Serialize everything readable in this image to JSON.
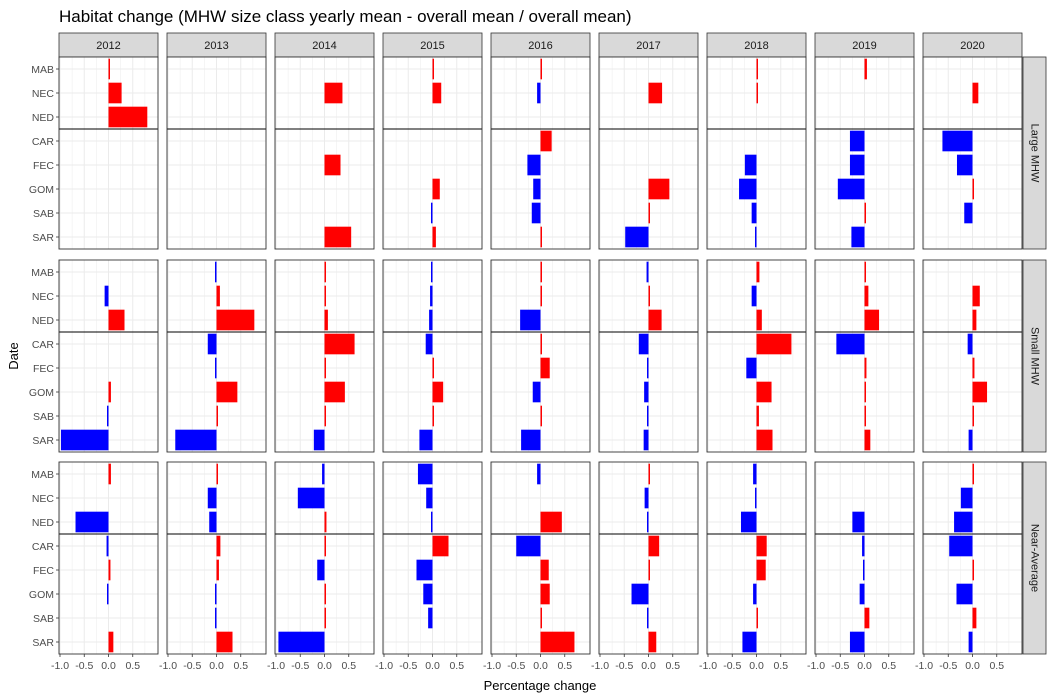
{
  "chart_data": {
    "type": "bar",
    "orientation": "horizontal",
    "title": "Habitat change (MHW size class yearly mean - overall mean / overall mean)",
    "xlabel": "Percentage change",
    "ylabel": "Date",
    "xlim": [
      -1.0,
      1.0
    ],
    "x_ticks": [
      -1.0,
      -0.5,
      0.0,
      0.5
    ],
    "x_tick_labels": [
      "-1.0",
      "-0.5",
      "0.0",
      "0.5"
    ],
    "grid": true,
    "years": [
      "2012",
      "2013",
      "2014",
      "2015",
      "2016",
      "2017",
      "2018",
      "2019",
      "2020"
    ],
    "regions": [
      "MAB",
      "NEC",
      "NED",
      "CAR",
      "FEC",
      "GOM",
      "SAB",
      "SAR"
    ],
    "region_groups": [
      [
        "MAB",
        "NEC",
        "NED"
      ],
      [
        "CAR",
        "FEC",
        "GOM",
        "SAB",
        "SAR"
      ]
    ],
    "colors": {
      "positive": "#ff0000",
      "negative": "#0000ff"
    },
    "classes": [
      {
        "name": "Large MHW",
        "values": {
          "2012": {
            "MAB": 0.03,
            "NEC": 0.27,
            "NED": 0.8
          },
          "2013": {},
          "2014": {
            "NEC": 0.37,
            "FEC": 0.33,
            "SAR": 0.55
          },
          "2015": {
            "MAB": 0.02,
            "NEC": 0.18,
            "GOM": 0.15,
            "SAB": -0.02,
            "SAR": 0.07
          },
          "2016": {
            "MAB": 0.01,
            "NEC": -0.07,
            "CAR": 0.23,
            "FEC": -0.27,
            "GOM": -0.15,
            "SAB": -0.18,
            "SAR": 0.02
          },
          "2017": {
            "NEC": 0.28,
            "GOM": 0.43,
            "SAB": 0.01,
            "SAR": -0.48
          },
          "2018": {
            "MAB": 0.01,
            "NEC": 0.02,
            "FEC": -0.24,
            "GOM": -0.36,
            "SAB": -0.1,
            "SAR": -0.02
          },
          "2019": {
            "MAB": 0.05,
            "CAR": -0.3,
            "FEC": -0.3,
            "GOM": -0.55,
            "SAB": 0.02,
            "SAR": -0.27
          },
          "2020": {
            "NEC": 0.12,
            "CAR": -0.62,
            "FEC": -0.32,
            "GOM": 0.01,
            "SAB": -0.17
          }
        }
      },
      {
        "name": "Small MHW",
        "values": {
          "2012": {
            "NEC": -0.08,
            "NED": 0.33,
            "GOM": 0.05,
            "SAB": -0.01,
            "SAR": -0.98
          },
          "2013": {
            "MAB": -0.01,
            "NEC": 0.07,
            "NED": 0.78,
            "CAR": -0.18,
            "FEC": -0.01,
            "GOM": 0.43,
            "SAB": 0.02,
            "SAR": -0.85
          },
          "2014": {
            "MAB": 0.01,
            "NEC": 0.01,
            "NED": 0.07,
            "CAR": 0.62,
            "FEC": 0.01,
            "GOM": 0.42,
            "SAB": 0.01,
            "SAR": -0.22
          },
          "2015": {
            "MAB": -0.03,
            "NEC": -0.05,
            "NED": -0.07,
            "CAR": -0.14,
            "FEC": 0.02,
            "GOM": 0.22,
            "SAB": 0.01,
            "SAR": -0.27
          },
          "2016": {
            "MAB": 0.01,
            "NEC": 0.01,
            "NED": -0.42,
            "CAR": 0.01,
            "FEC": 0.19,
            "GOM": -0.16,
            "SAB": 0.01,
            "SAR": -0.4
          },
          "2017": {
            "MAB": -0.04,
            "NEC": 0.01,
            "NED": 0.27,
            "CAR": -0.2,
            "FEC": -0.03,
            "GOM": -0.09,
            "SAB": -0.02,
            "SAR": -0.1
          },
          "2018": {
            "MAB": 0.06,
            "NEC": -0.1,
            "NED": 0.11,
            "CAR": 0.72,
            "FEC": -0.21,
            "GOM": 0.31,
            "SAB": 0.05,
            "SAR": 0.33
          },
          "2019": {
            "MAB": 0.01,
            "NEC": 0.08,
            "NED": 0.3,
            "CAR": -0.58,
            "FEC": 0.04,
            "GOM": 0.03,
            "SAB": 0.01,
            "SAR": 0.12
          },
          "2020": {
            "NEC": 0.15,
            "NED": 0.08,
            "CAR": -0.1,
            "FEC": 0.04,
            "GOM": 0.3,
            "SAB": 0.03,
            "SAR": -0.08
          }
        }
      },
      {
        "name": "Near-Average",
        "values": {
          "2012": {
            "MAB": 0.05,
            "NED": -0.68,
            "CAR": -0.04,
            "FEC": 0.04,
            "GOM": -0.02,
            "SAR": 0.1
          },
          "2013": {
            "MAB": 0.01,
            "NEC": -0.18,
            "NED": -0.15,
            "CAR": 0.08,
            "FEC": 0.05,
            "GOM": -0.02,
            "SAB": -0.01,
            "SAR": 0.33
          },
          "2014": {
            "MAB": -0.05,
            "NEC": -0.55,
            "NED": 0.04,
            "CAR": 0.03,
            "FEC": -0.15,
            "GOM": 0.02,
            "SAB": 0.02,
            "SAR": -0.95
          },
          "2015": {
            "MAB": -0.3,
            "NEC": -0.13,
            "NED": -0.03,
            "CAR": 0.33,
            "FEC": -0.33,
            "GOM": -0.19,
            "SAB": -0.09
          },
          "2016": {
            "MAB": -0.07,
            "NED": 0.44,
            "CAR": -0.5,
            "FEC": 0.17,
            "GOM": 0.19,
            "SAB": 0.01,
            "SAR": 0.7
          },
          "2017": {
            "MAB": 0.03,
            "NEC": -0.08,
            "NED": -0.01,
            "CAR": 0.22,
            "FEC": 0.02,
            "GOM": -0.35,
            "SAB": -0.01,
            "SAR": 0.16
          },
          "2018": {
            "MAB": -0.07,
            "NEC": -0.03,
            "NED": -0.32,
            "CAR": 0.21,
            "FEC": 0.19,
            "GOM": -0.07,
            "SAB": 0.01,
            "SAR": -0.29
          },
          "2019": {
            "NED": -0.25,
            "CAR": -0.05,
            "FEC": -0.01,
            "GOM": -0.1,
            "SAB": 0.1,
            "SAR": -0.3
          },
          "2020": {
            "MAB": 0.02,
            "NEC": -0.24,
            "NED": -0.38,
            "CAR": -0.48,
            "FEC": 0.02,
            "GOM": -0.33,
            "SAB": 0.08,
            "SAR": -0.08
          }
        }
      }
    ]
  }
}
